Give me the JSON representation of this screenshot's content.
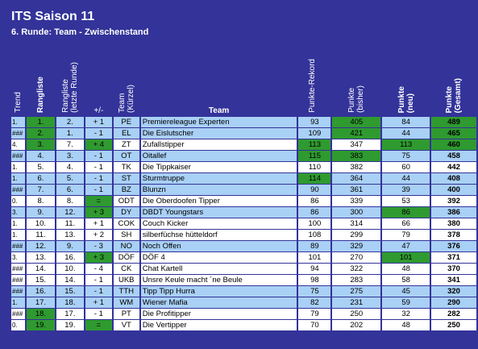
{
  "header": {
    "title": "ITS Saison 11",
    "subtitle": "6. Runde: Team - Zwischenstand"
  },
  "table": {
    "columns": [
      "Trend",
      "Rangliste",
      "Rangliste\n(letzte Runde)",
      "+/-",
      "Team\n(Kürzel)",
      "Team",
      "Punkte-Rekord",
      "Punkte\n(bisher)",
      "Punkte\n(neu)",
      "Punkte\n(Gesamt)"
    ],
    "rows": [
      [
        "1.",
        "1.",
        "2.",
        "+ 1",
        "PE",
        "Premiereleague Experten",
        93,
        405,
        84,
        489
      ],
      [
        "###",
        "2.",
        "1.",
        "- 1",
        "EL",
        "Die Eislutscher",
        109,
        421,
        44,
        465
      ],
      [
        "4.",
        "3.",
        "7.",
        "+ 4",
        "ZT",
        "Zufallstipper",
        113,
        347,
        113,
        460
      ],
      [
        "###",
        "4.",
        "3.",
        "- 1",
        "OT",
        "Oitallef",
        115,
        383,
        75,
        458
      ],
      [
        "1.",
        "5.",
        "4.",
        "- 1",
        "TK",
        "Die Tippkaiser",
        110,
        382,
        60,
        442
      ],
      [
        "1.",
        "6.",
        "5.",
        "- 1",
        "ST",
        "Sturmtruppe",
        114,
        364,
        44,
        408
      ],
      [
        "###",
        "7.",
        "6.",
        "- 1",
        "BZ",
        "Blunzn",
        90,
        361,
        39,
        400
      ],
      [
        "0.",
        "8.",
        "8.",
        "=",
        "ODT",
        "Die Oberdoofen Tipper",
        86,
        339,
        53,
        392
      ],
      [
        "3.",
        "9.",
        "12.",
        "+ 3",
        "DY",
        "DBDT Youngstars",
        86,
        300,
        86,
        386
      ],
      [
        "1.",
        "10.",
        "11.",
        "+ 1",
        "COK",
        "Couch Kicker",
        100,
        314,
        66,
        380
      ],
      [
        "1.",
        "11.",
        "13.",
        "+ 2",
        "SH",
        "silberfüchse hütteldorf",
        108,
        299,
        79,
        378
      ],
      [
        "###",
        "12.",
        "9.",
        "- 3",
        "NO",
        "Noch Offen",
        89,
        329,
        47,
        376
      ],
      [
        "3.",
        "13.",
        "16.",
        "+ 3",
        "DÖF",
        "DÖF 4",
        101,
        270,
        101,
        371
      ],
      [
        "###",
        "14.",
        "10.",
        "- 4",
        "CK",
        "Chat Kartell",
        94,
        322,
        48,
        370
      ],
      [
        "###",
        "15.",
        "14.",
        "- 1",
        "UKB",
        "Unsre Keule macht ´ne Beule",
        98,
        283,
        58,
        341
      ],
      [
        "###",
        "16.",
        "15.",
        "- 1",
        "TTH",
        "Tipp Tipp Hurra",
        75,
        275,
        45,
        320
      ],
      [
        "1.",
        "17.",
        "18.",
        "+ 1",
        "WM",
        "Wiener Mafia",
        82,
        231,
        59,
        290
      ],
      [
        "###",
        "18.",
        "17.",
        "- 1",
        "PT",
        "Die Profitipper",
        79,
        250,
        32,
        282
      ],
      [
        "0.",
        "19.",
        "19.",
        "=",
        "VT",
        "Die Vertipper",
        70,
        202,
        48,
        250
      ]
    ]
  }
}
